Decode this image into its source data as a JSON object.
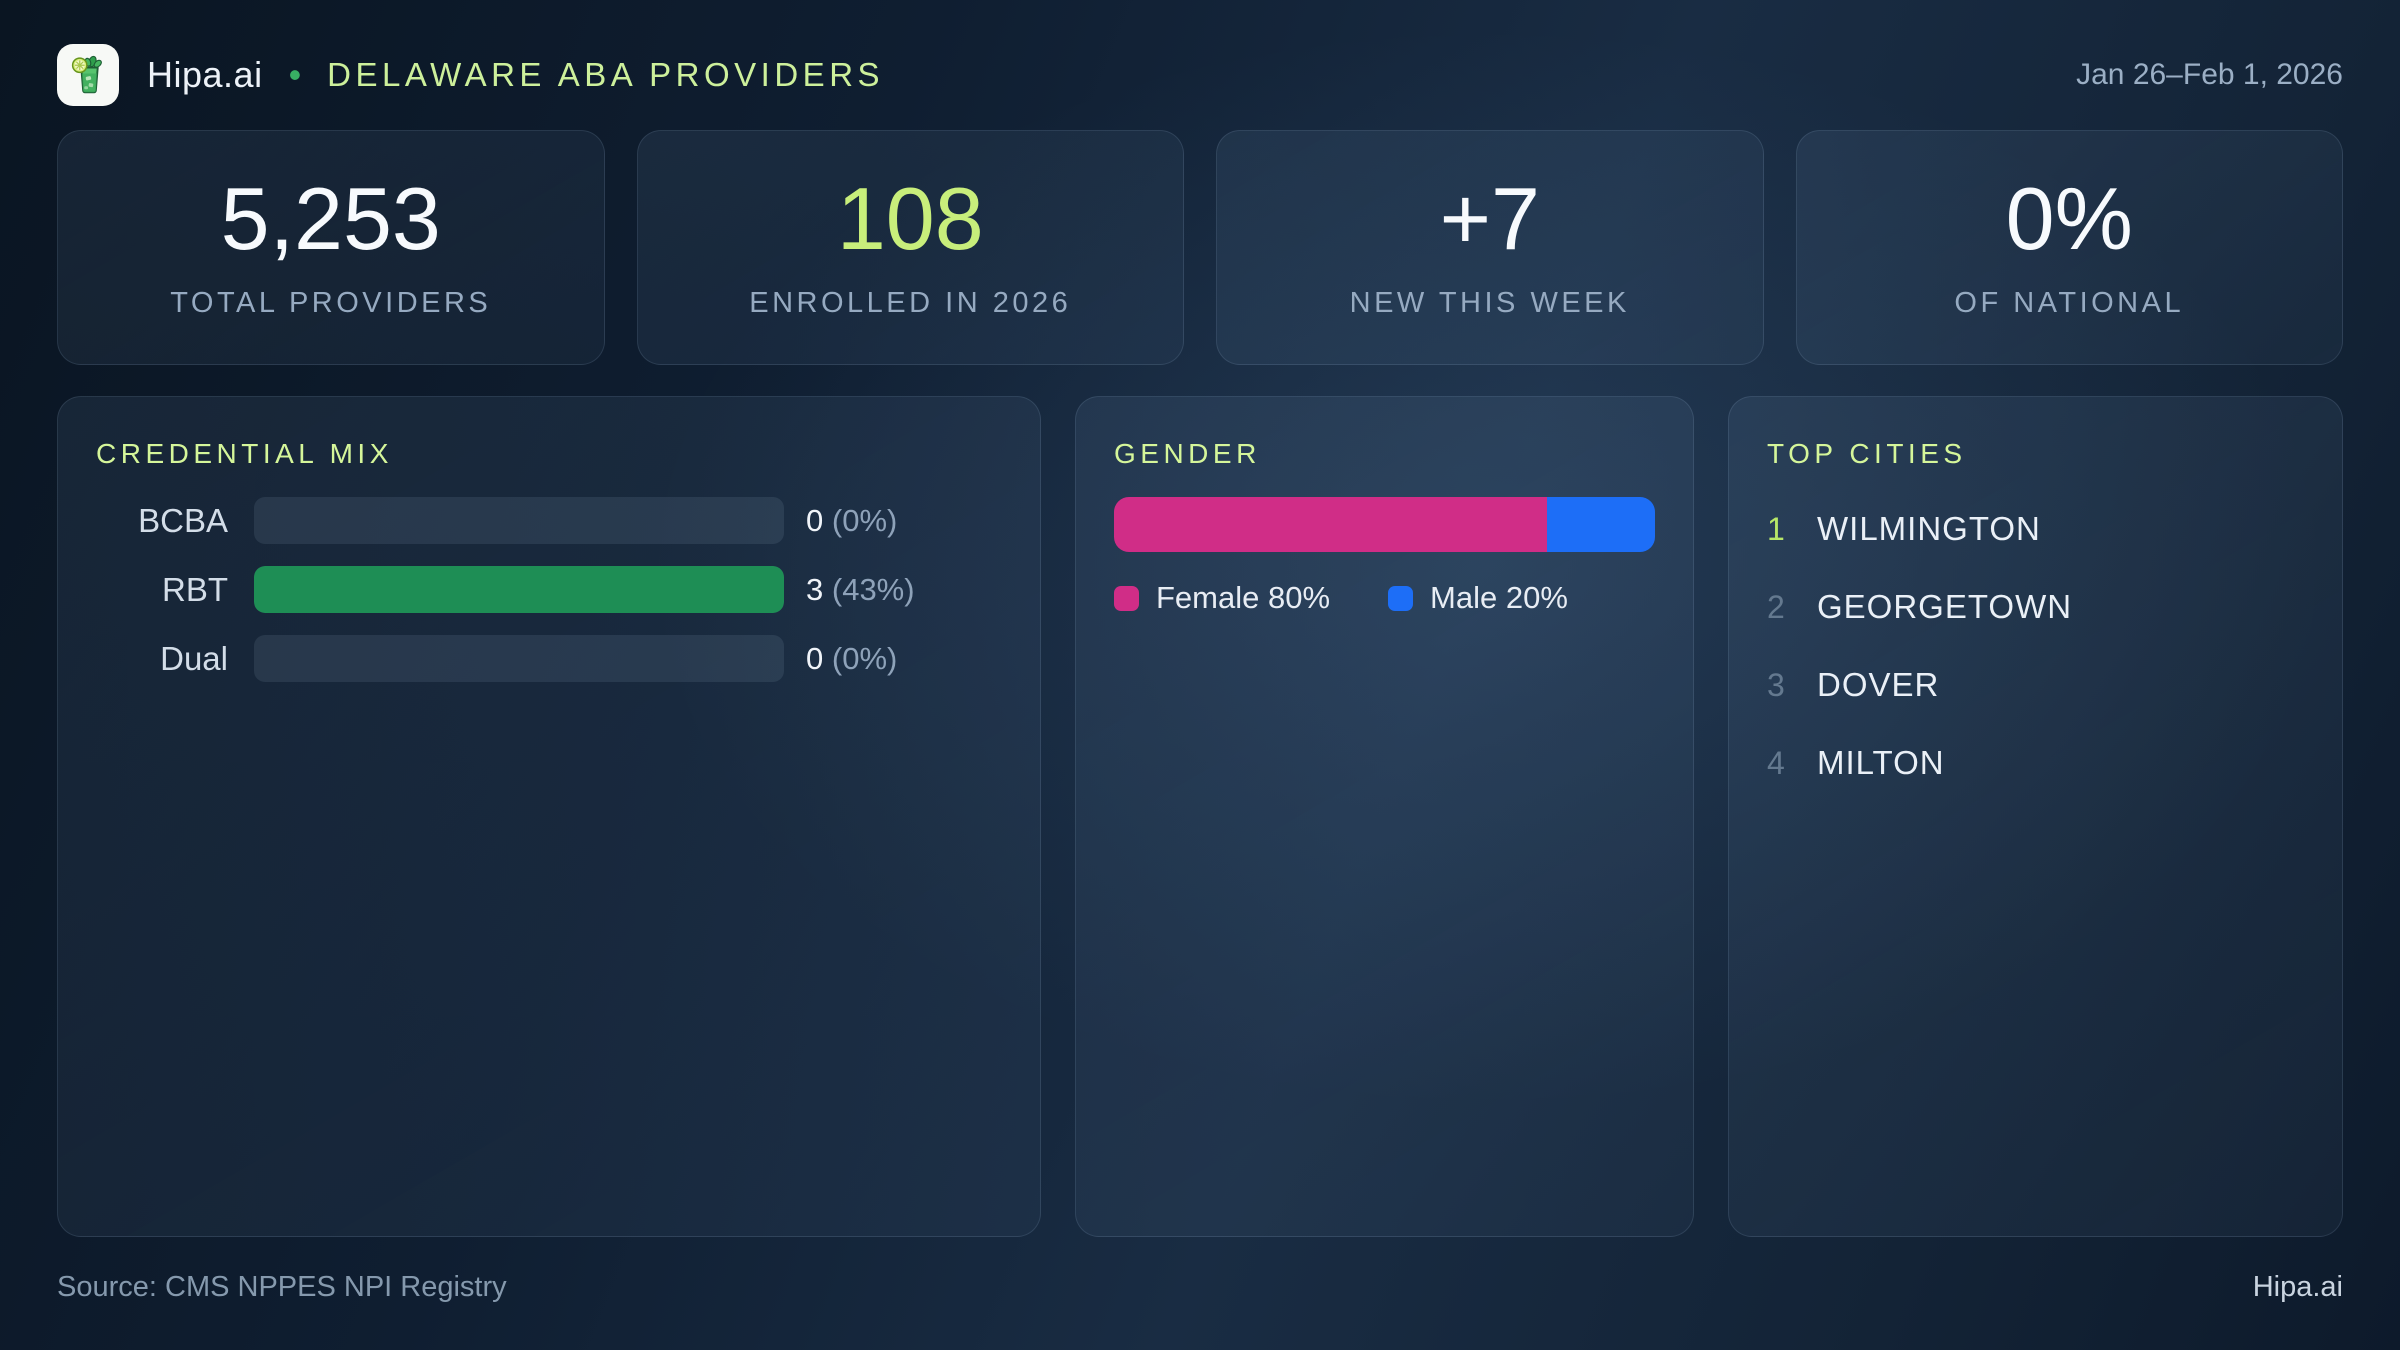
{
  "header": {
    "brand": "Hipa.ai",
    "separator": "•",
    "title": "DELAWARE ABA PROVIDERS",
    "date_range": "Jan 26–Feb 1, 2026",
    "logo_icon": "mojito-glass"
  },
  "stats": [
    {
      "value": "5,253",
      "label": "TOTAL PROVIDERS"
    },
    {
      "value": "108",
      "label": "ENROLLED IN 2026"
    },
    {
      "value": "+7",
      "label": "NEW THIS WEEK"
    },
    {
      "value": "0%",
      "label": "OF NATIONAL"
    }
  ],
  "credential_mix": {
    "title": "CREDENTIAL MIX",
    "bar_color": "#1e8e55",
    "track_color": "rgba(151,175,203,0.13)",
    "rows": [
      {
        "label": "BCBA",
        "count": "0",
        "percent": "(0%)",
        "fill": 0
      },
      {
        "label": "RBT",
        "count": "3",
        "percent": "(43%)",
        "fill": 100
      },
      {
        "label": "Dual",
        "count": "0",
        "percent": "(0%)",
        "fill": 0
      }
    ]
  },
  "gender": {
    "title": "GENDER",
    "female": {
      "label": "Female 80%",
      "percent": 80,
      "color": "#d02d87"
    },
    "male": {
      "label": "Male 20%",
      "percent": 20,
      "color": "#1d6ef7"
    }
  },
  "top_cities": {
    "title": "TOP CITIES",
    "items": [
      {
        "rank": "1",
        "city": "WILMINGTON"
      },
      {
        "rank": "2",
        "city": "GEORGETOWN"
      },
      {
        "rank": "3",
        "city": "DOVER"
      },
      {
        "rank": "4",
        "city": "MILTON"
      }
    ]
  },
  "footer": {
    "source": "Source: CMS NPPES NPI Registry",
    "brand": "Hipa.ai"
  },
  "colors": {
    "accent_lime": "#c8ee7b",
    "title_lime": "#d5f69a",
    "rank_green": "#b7e768",
    "bullet_green": "#38ae63"
  }
}
